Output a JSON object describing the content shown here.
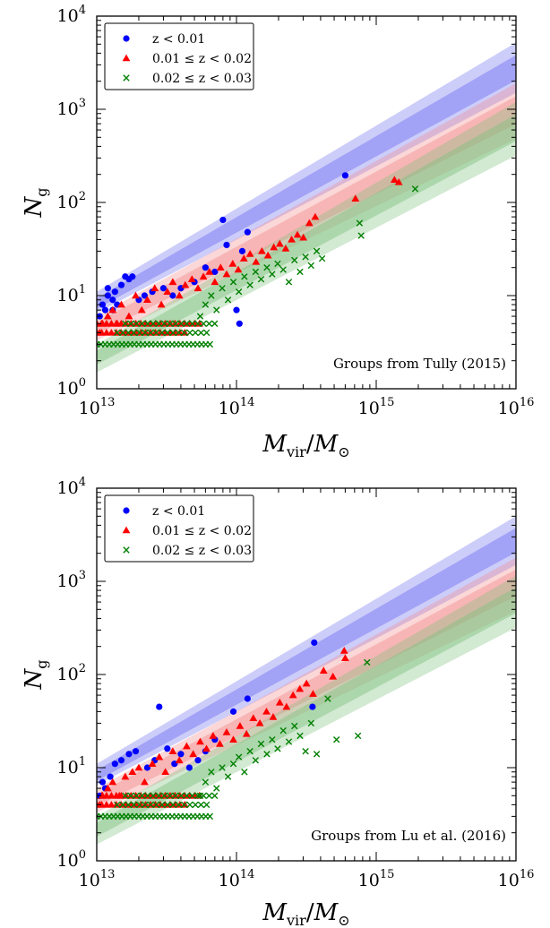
{
  "colors": {
    "blue": "#0000ff",
    "red": "#ff0000",
    "green": "#008000",
    "band_blue": "#6f6ff2",
    "band_red": "#f48b8b",
    "band_green": "#7fc07f"
  },
  "chart_data": [
    {
      "type": "scatter",
      "x_scale": "log",
      "y_scale": "log",
      "xlim": [
        10000000000000.0,
        1e+16
      ],
      "ylim": [
        1,
        10000
      ],
      "xlabel": "M_vir / M_⊙",
      "ylabel": "N_g",
      "x_tick_labels": [
        "10^13",
        "10^14",
        "10^15",
        "10^16"
      ],
      "y_tick_labels": [
        "10^0",
        "10^1",
        "10^2",
        "10^3",
        "10^4"
      ],
      "annotation": "Groups from Tully (2015)",
      "legend_position": "upper left",
      "series": [
        {
          "name": "z < 0.01",
          "marker": "circle",
          "color": "#0000ff",
          "band": {
            "x": [
              10000000000000.0,
              1e+16
            ],
            "center": [
              8,
              2800
            ],
            "upper": [
              11,
              5200
            ],
            "lower": [
              6.5,
              1500
            ]
          },
          "points": [
            [
              10500000000000.0,
              6
            ],
            [
              11000000000000.0,
              8
            ],
            [
              11500000000000.0,
              7
            ],
            [
              12000000000000.0,
              10
            ],
            [
              13000000000000.0,
              9
            ],
            [
              13500000000000.0,
              11
            ],
            [
              14000000000000.0,
              8
            ],
            [
              15000000000000.0,
              13
            ],
            [
              16000000000000.0,
              16
            ],
            [
              17000000000000.0,
              15
            ],
            [
              18000000000000.0,
              16
            ],
            [
              12000000000000.0,
              12
            ],
            [
              13000000000000.0,
              7
            ],
            [
              20000000000000.0,
              9
            ],
            [
              22000000000000.0,
              10
            ],
            [
              25000000000000.0,
              11
            ],
            [
              30000000000000.0,
              12
            ],
            [
              35000000000000.0,
              10
            ],
            [
              40000000000000.0,
              12
            ],
            [
              50000000000000.0,
              14
            ],
            [
              60000000000000.0,
              20
            ],
            [
              70000000000000.0,
              18
            ],
            [
              80000000000000.0,
              65
            ],
            [
              85000000000000.0,
              35
            ],
            [
              110000000000000.0,
              30
            ],
            [
              120000000000000.0,
              48
            ],
            [
              100000000000000.0,
              7
            ],
            [
              105000000000000.0,
              5
            ],
            [
              600000000000000.0,
              195
            ]
          ]
        },
        {
          "name": "0.01 ≤ z < 0.02",
          "marker": "triangle",
          "color": "#ff0000",
          "band": {
            "x": [
              10000000000000.0,
              1e+16
            ],
            "center": [
              4.5,
              1000
            ],
            "upper": [
              6,
              1900
            ],
            "lower": [
              3.3,
              480
            ]
          },
          "points": [
            [
              10500000000000.0,
              4
            ],
            [
              11000000000000.0,
              5
            ],
            [
              12000000000000.0,
              6
            ],
            [
              13000000000000.0,
              7
            ],
            [
              14000000000000.0,
              5
            ],
            [
              15000000000000.0,
              8
            ],
            [
              17000000000000.0,
              6
            ],
            [
              19000000000000.0,
              10
            ],
            [
              21000000000000.0,
              7
            ],
            [
              23000000000000.0,
              9
            ],
            [
              26000000000000.0,
              12
            ],
            [
              29000000000000.0,
              8
            ],
            [
              32000000000000.0,
              11
            ],
            [
              35000000000000.0,
              14
            ],
            [
              39000000000000.0,
              10
            ],
            [
              43000000000000.0,
              13
            ],
            [
              48000000000000.0,
              15
            ],
            [
              53000000000000.0,
              12
            ],
            [
              58000000000000.0,
              16
            ],
            [
              64000000000000.0,
              18
            ],
            [
              70000000000000.0,
              14
            ],
            [
              77000000000000.0,
              20
            ],
            [
              85000000000000.0,
              17
            ],
            [
              94000000000000.0,
              22
            ],
            [
              103000000000000.0,
              19
            ],
            [
              113000000000000.0,
              25
            ],
            [
              125000000000000.0,
              28
            ],
            [
              138000000000000.0,
              23
            ],
            [
              152000000000000.0,
              30
            ],
            [
              168000000000000.0,
              27
            ],
            [
              185000000000000.0,
              33
            ],
            [
              204000000000000.0,
              36
            ],
            [
              225000000000000.0,
              32
            ],
            [
              248000000000000.0,
              40
            ],
            [
              273000000000000.0,
              45
            ],
            [
              301000000000000.0,
              42
            ],
            [
              332000000000000.0,
              60
            ],
            [
              366000000000000.0,
              70
            ],
            [
              710000000000000.0,
              110
            ],
            [
              1350000000000000.0,
              175
            ],
            [
              1450000000000000.0,
              165
            ]
          ]
        },
        {
          "name": "0.02 ≤ z < 0.03",
          "marker": "x",
          "color": "#008000",
          "band": {
            "x": [
              10000000000000.0,
              1e+16
            ],
            "center": [
              2.2,
              650
            ],
            "upper": [
              3.0,
              1200
            ],
            "lower": [
              1.5,
              320
            ]
          },
          "points": [
            [
              55000000000000.0,
              6
            ],
            [
              60000000000000.0,
              8
            ],
            [
              66000000000000.0,
              10
            ],
            [
              72000000000000.0,
              7
            ],
            [
              79000000000000.0,
              12
            ],
            [
              87000000000000.0,
              9
            ],
            [
              95000000000000.0,
              14
            ],
            [
              104000000000000.0,
              11
            ],
            [
              114000000000000.0,
              16
            ],
            [
              125000000000000.0,
              13
            ],
            [
              137000000000000.0,
              18
            ],
            [
              150000000000000.0,
              15
            ],
            [
              165000000000000.0,
              20
            ],
            [
              180000000000000.0,
              17
            ],
            [
              197000000000000.0,
              22
            ],
            [
              216000000000000.0,
              19
            ],
            [
              237000000000000.0,
              14
            ],
            [
              260000000000000.0,
              24
            ],
            [
              285000000000000.0,
              18
            ],
            [
              312000000000000.0,
              26
            ],
            [
              342000000000000.0,
              21
            ],
            [
              375000000000000.0,
              30
            ],
            [
              410000000000000.0,
              25
            ],
            [
              760000000000000.0,
              60
            ],
            [
              780000000000000.0,
              44
            ],
            [
              1900000000000000.0,
              140
            ]
          ]
        }
      ]
    },
    {
      "type": "scatter",
      "x_scale": "log",
      "y_scale": "log",
      "xlim": [
        10000000000000.0,
        1e+16
      ],
      "ylim": [
        1,
        10000
      ],
      "xlabel": "M_vir / M_⊙",
      "ylabel": "N_g",
      "x_tick_labels": [
        "10^13",
        "10^14",
        "10^15",
        "10^16"
      ],
      "y_tick_labels": [
        "10^0",
        "10^1",
        "10^2",
        "10^3",
        "10^4"
      ],
      "annotation": "Groups from Lu et al. (2016)",
      "legend_position": "upper left",
      "series": [
        {
          "name": "z < 0.01",
          "marker": "circle",
          "color": "#0000ff",
          "band": {
            "x": [
              10000000000000.0,
              1e+16
            ],
            "center": [
              8,
              2800
            ],
            "upper": [
              11,
              5000
            ],
            "lower": [
              6.5,
              1500
            ]
          },
          "points": [
            [
              10500000000000.0,
              5
            ],
            [
              11000000000000.0,
              7
            ],
            [
              11500000000000.0,
              6
            ],
            [
              12500000000000.0,
              8
            ],
            [
              13500000000000.0,
              11
            ],
            [
              15000000000000.0,
              12
            ],
            [
              17000000000000.0,
              14
            ],
            [
              19000000000000.0,
              15
            ],
            [
              23000000000000.0,
              10
            ],
            [
              26000000000000.0,
              12
            ],
            [
              28000000000000.0,
              45
            ],
            [
              32000000000000.0,
              16
            ],
            [
              36000000000000.0,
              11
            ],
            [
              40000000000000.0,
              14
            ],
            [
              46000000000000.0,
              10
            ],
            [
              53000000000000.0,
              12
            ],
            [
              60000000000000.0,
              15
            ],
            [
              70000000000000.0,
              20
            ],
            [
              95000000000000.0,
              40
            ],
            [
              120000000000000.0,
              55
            ],
            [
              350000000000000.0,
              45
            ],
            [
              360000000000000.0,
              220
            ]
          ]
        },
        {
          "name": "0.01 ≤ z < 0.02",
          "marker": "triangle",
          "color": "#ff0000",
          "band": {
            "x": [
              10000000000000.0,
              1e+16
            ],
            "center": [
              4.5,
              1000
            ],
            "upper": [
              6,
              1800
            ],
            "lower": [
              3.3,
              480
            ]
          },
          "points": [
            [
              10500000000000.0,
              4
            ],
            [
              11000000000000.0,
              5
            ],
            [
              12000000000000.0,
              6
            ],
            [
              13000000000000.0,
              7
            ],
            [
              14500000000000.0,
              5
            ],
            [
              16000000000000.0,
              8
            ],
            [
              18000000000000.0,
              9
            ],
            [
              20000000000000.0,
              10
            ],
            [
              22000000000000.0,
              7
            ],
            [
              25000000000000.0,
              11
            ],
            [
              28000000000000.0,
              13
            ],
            [
              31000000000000.0,
              9
            ],
            [
              35000000000000.0,
              15
            ],
            [
              39000000000000.0,
              12
            ],
            [
              44000000000000.0,
              17
            ],
            [
              49000000000000.0,
              14
            ],
            [
              55000000000000.0,
              19
            ],
            [
              61000000000000.0,
              16
            ],
            [
              68000000000000.0,
              22
            ],
            [
              76000000000000.0,
              18
            ],
            [
              85000000000000.0,
              24
            ],
            [
              95000000000000.0,
              20
            ],
            [
              106000000000000.0,
              28
            ],
            [
              118000000000000.0,
              23
            ],
            [
              132000000000000.0,
              34
            ],
            [
              147000000000000.0,
              30
            ],
            [
              164000000000000.0,
              40
            ],
            [
              183000000000000.0,
              35
            ],
            [
              204000000000000.0,
              50
            ],
            [
              228000000000000.0,
              45
            ],
            [
              254000000000000.0,
              60
            ],
            [
              284000000000000.0,
              70
            ],
            [
              317000000000000.0,
              80
            ],
            [
              353000000000000.0,
              62
            ],
            [
              420000000000000.0,
              110
            ],
            [
              490000000000000.0,
              95
            ],
            [
              590000000000000.0,
              180
            ],
            [
              600000000000000.0,
              150
            ]
          ]
        },
        {
          "name": "0.02 ≤ z < 0.03",
          "marker": "x",
          "color": "#008000",
          "band": {
            "x": [
              10000000000000.0,
              1e+16
            ],
            "center": [
              2.2,
              650
            ],
            "upper": [
              3.0,
              1150
            ],
            "lower": [
              1.5,
              320
            ]
          },
          "points": [
            [
              55000000000000.0,
              5
            ],
            [
              60000000000000.0,
              7
            ],
            [
              66000000000000.0,
              9
            ],
            [
              72000000000000.0,
              6
            ],
            [
              79000000000000.0,
              10
            ],
            [
              87000000000000.0,
              8
            ],
            [
              95000000000000.0,
              11
            ],
            [
              104000000000000.0,
              13
            ],
            [
              114000000000000.0,
              9
            ],
            [
              125000000000000.0,
              15
            ],
            [
              137000000000000.0,
              12
            ],
            [
              150000000000000.0,
              18
            ],
            [
              165000000000000.0,
              14
            ],
            [
              180000000000000.0,
              20
            ],
            [
              197000000000000.0,
              16
            ],
            [
              216000000000000.0,
              25
            ],
            [
              237000000000000.0,
              19
            ],
            [
              260000000000000.0,
              28
            ],
            [
              285000000000000.0,
              22
            ],
            [
              312000000000000.0,
              15
            ],
            [
              342000000000000.0,
              30
            ],
            [
              375000000000000.0,
              14
            ],
            [
              450000000000000.0,
              55
            ],
            [
              520000000000000.0,
              20
            ],
            [
              740000000000000.0,
              22
            ],
            [
              860000000000000.0,
              135
            ]
          ]
        }
      ]
    }
  ]
}
